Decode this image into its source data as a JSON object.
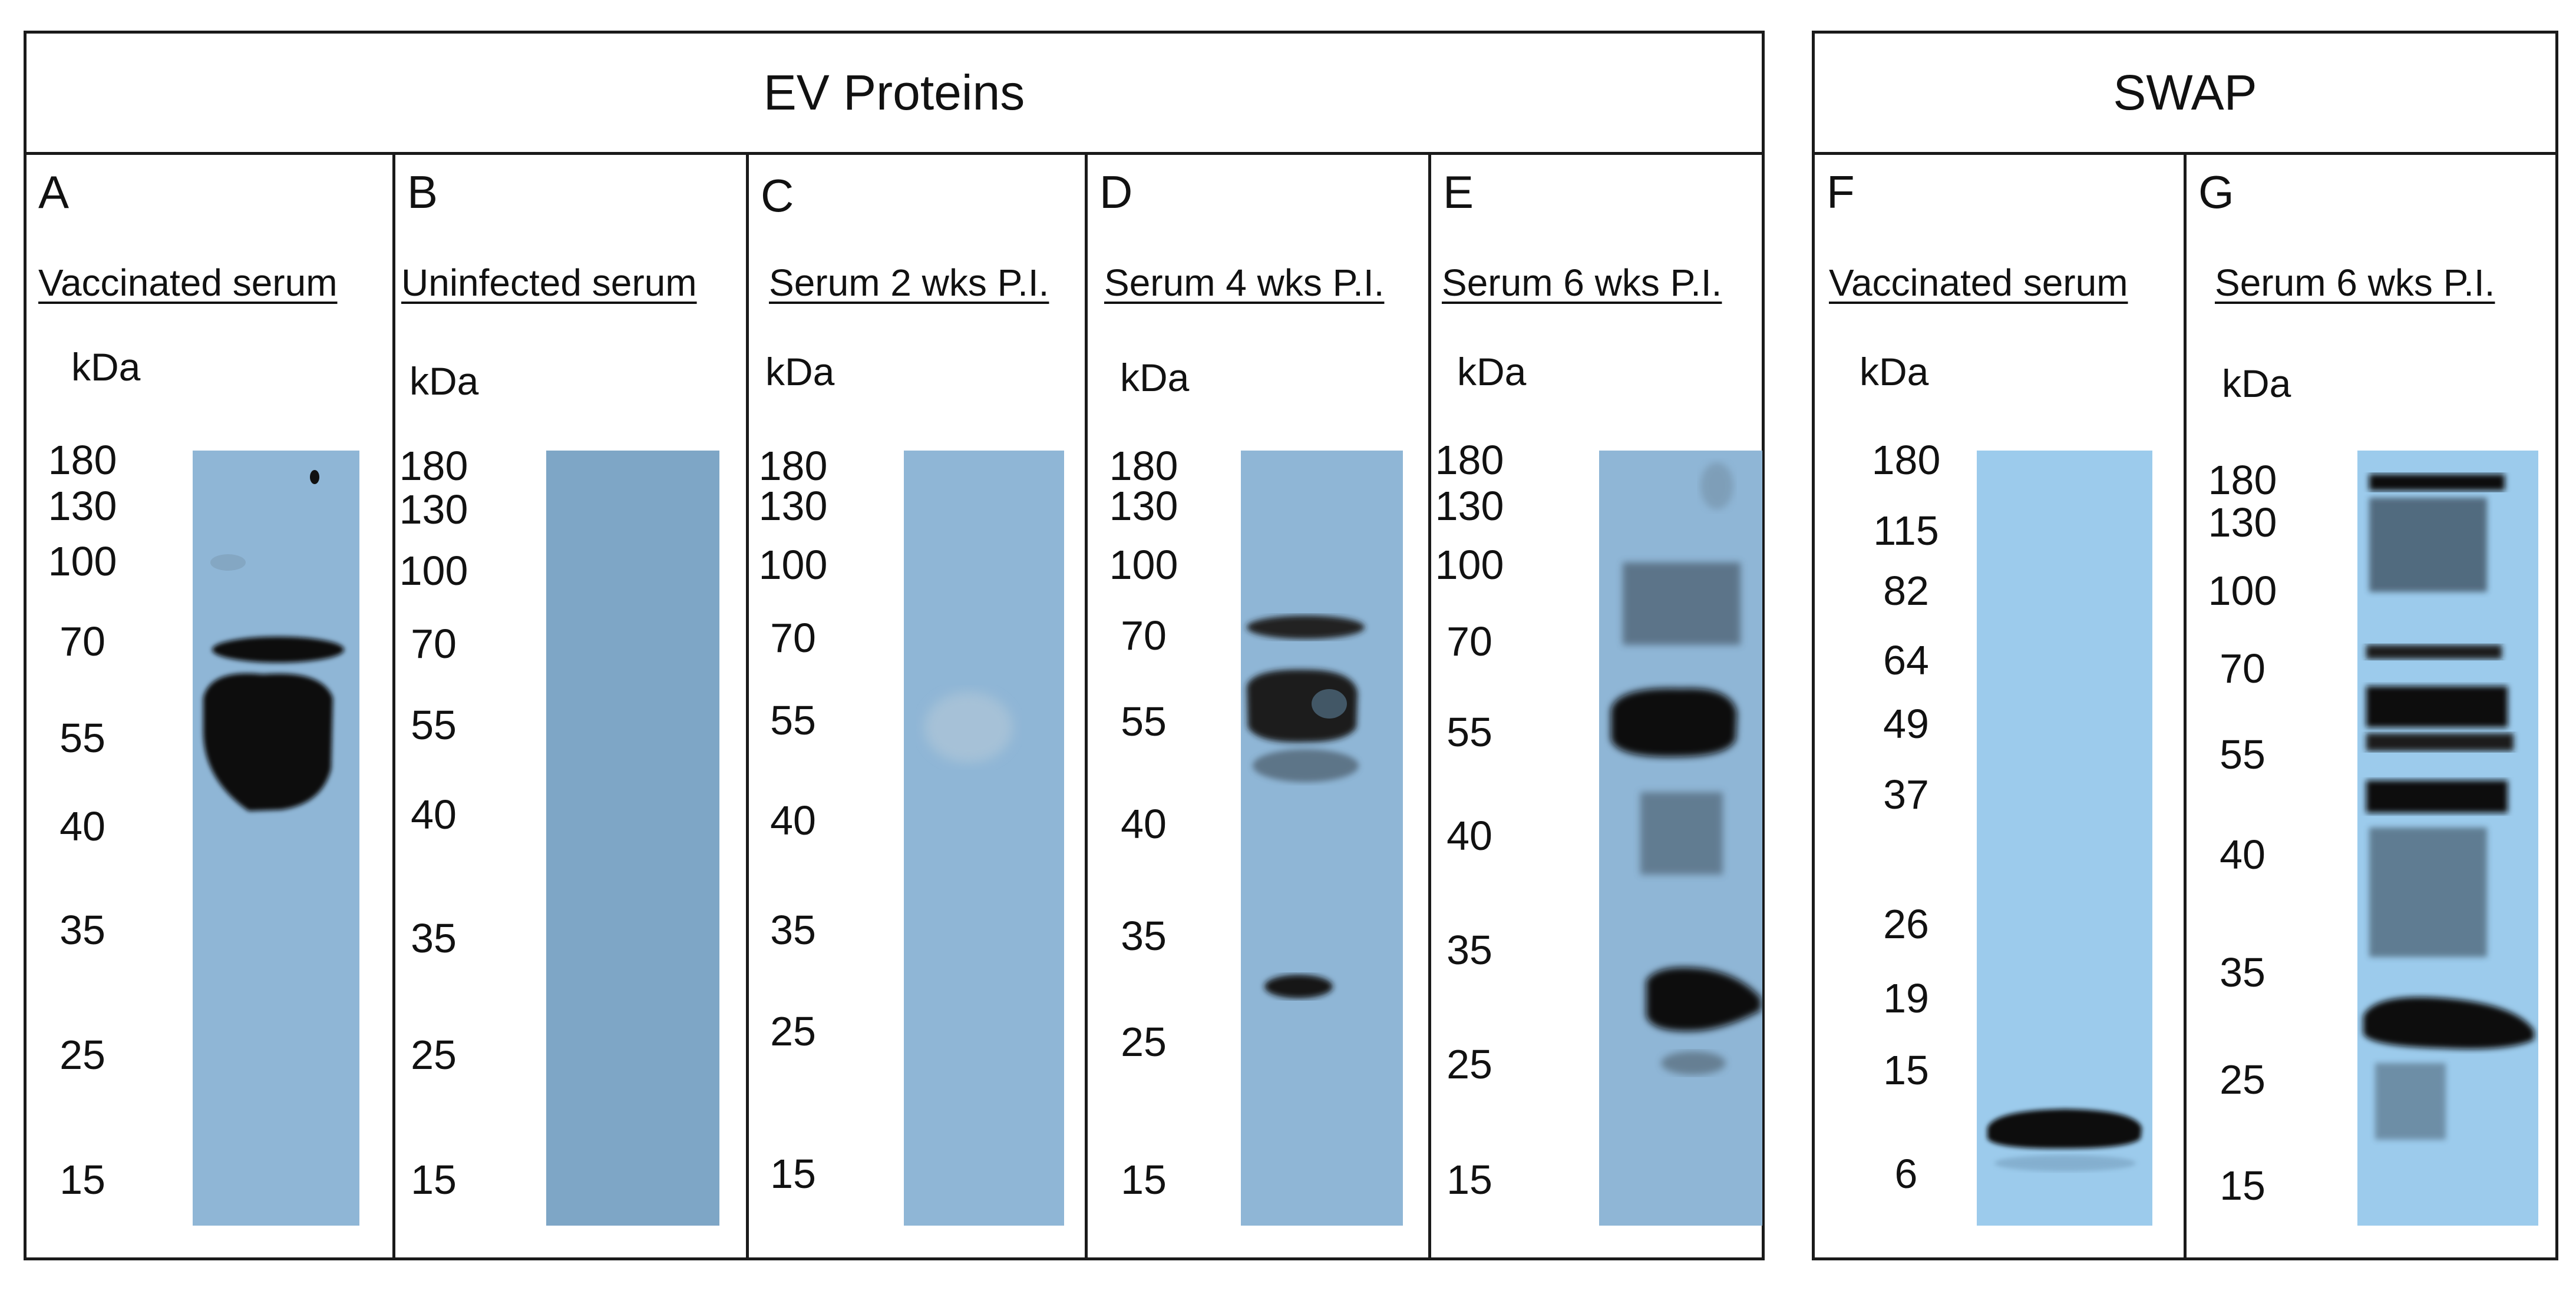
{
  "groups": {
    "ev": {
      "title": "EV Proteins"
    },
    "swap": {
      "title": "SWAP"
    }
  },
  "unit": "kDa",
  "panels": [
    {
      "id": "A",
      "letter": "A",
      "title": "Vaccinated serum",
      "markers": [
        "180",
        "130",
        "100",
        "70",
        "55",
        "40",
        "35",
        "25",
        "15"
      ]
    },
    {
      "id": "B",
      "letter": "B",
      "title": "Uninfected serum",
      "markers": [
        "180",
        "130",
        "100",
        "70",
        "55",
        "40",
        "35",
        "25",
        "15"
      ]
    },
    {
      "id": "C",
      "letter": "C",
      "title": "Serum 2 wks P.I.",
      "markers": [
        "180",
        "130",
        "100",
        "70",
        "55",
        "40",
        "35",
        "25",
        "15"
      ]
    },
    {
      "id": "D",
      "letter": "D",
      "title": "Serum 4 wks P.I.",
      "markers": [
        "180",
        "130",
        "100",
        "70",
        "55",
        "40",
        "35",
        "25",
        "15"
      ]
    },
    {
      "id": "E",
      "letter": "E",
      "title": "Serum 6 wks P.I.",
      "markers": [
        "180",
        "130",
        "100",
        "70",
        "55",
        "40",
        "35",
        "25",
        "15"
      ]
    },
    {
      "id": "F",
      "letter": "F",
      "title": "Vaccinated serum",
      "markers": [
        "180",
        "115",
        "82",
        "64",
        "49",
        "37",
        "26",
        "19",
        "15",
        "6"
      ]
    },
    {
      "id": "G",
      "letter": "G",
      "title": "Serum 6 wks P.I.",
      "markers": [
        "180",
        "130",
        "100",
        "70",
        "55",
        "40",
        "35",
        "25",
        "15"
      ]
    }
  ],
  "colors": {
    "blot_blue": "#8fb6d6",
    "blot_blue_dark": "#7ea6c6",
    "blot_blue_light": "#9ccbec",
    "band": "#0b0b0b",
    "border": "#1a1a1a"
  }
}
